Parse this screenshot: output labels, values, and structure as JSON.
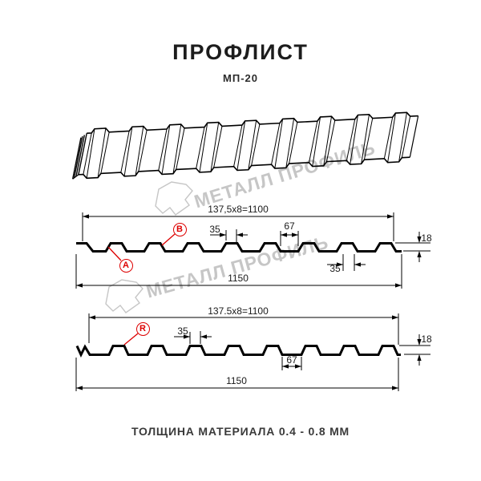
{
  "title": "ПРОФЛИСТ",
  "subtitle": "МП-20",
  "footer": "ТОЛЩИНА МАТЕРИАЛА 0.4 - 0.8 ММ",
  "watermark": {
    "text": "МЕТАЛЛ ПРОФИЛЬ",
    "logo": "metall-profil-logo"
  },
  "section_top": {
    "width_label": "137,5x8=1100",
    "rib_top_label": "35",
    "valley_label": "67",
    "height_label": "18",
    "rib_bottom_label": "35",
    "total_width_label": "1150",
    "marker_a": "A",
    "marker_b": "B"
  },
  "section_bottom": {
    "width_label": "137.5x8=1100",
    "rib_top_label": "35",
    "valley_label": "67",
    "height_label": "18",
    "total_width_label": "1150",
    "marker_r": "R"
  },
  "colors": {
    "line": "#000000",
    "accent_red": "#dd0000",
    "watermark": "#c6c6c6"
  }
}
